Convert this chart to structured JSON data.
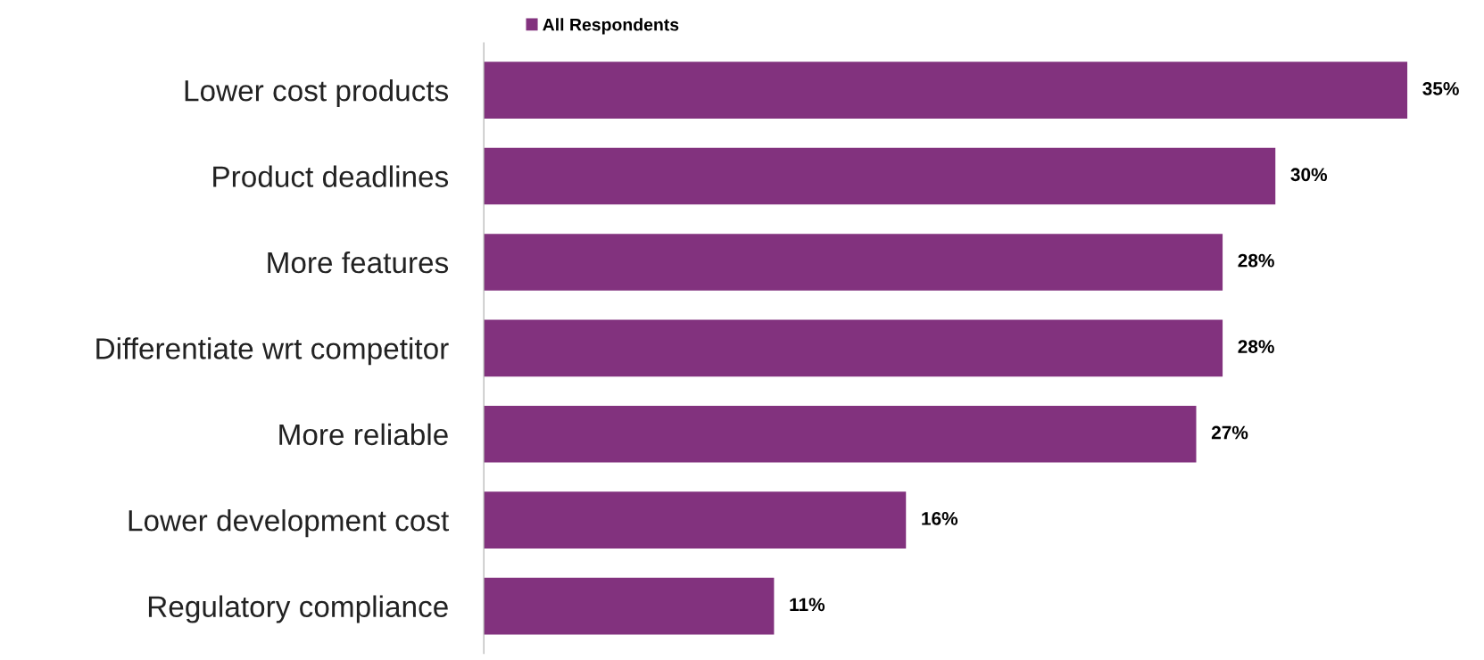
{
  "chart_data": {
    "type": "bar",
    "orientation": "horizontal",
    "categories": [
      "Lower cost products",
      "Product deadlines",
      "More features",
      "Differentiate wrt competitor",
      "More reliable",
      "Lower development cost",
      "Regulatory compliance"
    ],
    "series": [
      {
        "name": "All Respondents",
        "color": "#82327e",
        "values": [
          35,
          30,
          28,
          28,
          27,
          16,
          11
        ],
        "value_labels": [
          "35%",
          "30%",
          "28%",
          "28%",
          "27%",
          "16%",
          "11%"
        ]
      }
    ],
    "legend": "top",
    "grid": false
  }
}
